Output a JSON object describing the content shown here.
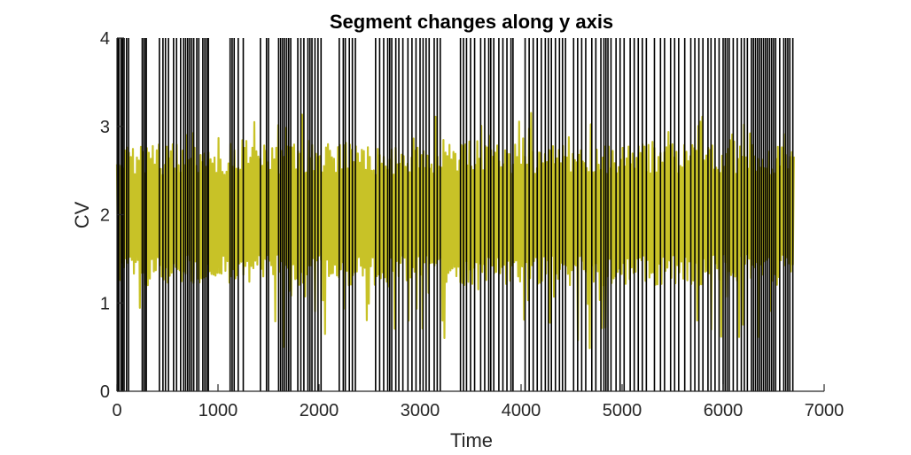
{
  "chart_data": {
    "type": "line",
    "title": "Segment changes along y axis",
    "xlabel": "Time",
    "ylabel": "CV",
    "xlim": [
      0,
      7000
    ],
    "ylim": [
      0,
      4
    ],
    "xticks": [
      "0",
      "1000",
      "2000",
      "3000",
      "4000",
      "5000",
      "6000",
      "7000"
    ],
    "yticks": [
      "0",
      "1",
      "2",
      "3",
      "4"
    ],
    "grid": false,
    "legend": "none",
    "colors": {
      "signal": "#c8c227",
      "signal_highlight": "#f5f000",
      "changepoint": "#000000",
      "axis": "#262626"
    },
    "signal": {
      "x_range": [
        0,
        6700
      ],
      "approx_points": 680,
      "typical_low": 1.2,
      "typical_high": 2.8,
      "min": 0.35,
      "max": 3.2
    },
    "changepoints": [
      8,
      18,
      40,
      55,
      70,
      95,
      115,
      250,
      268,
      285,
      290,
      420,
      455,
      480,
      510,
      560,
      590,
      630,
      660,
      680,
      700,
      720,
      740,
      760,
      790,
      810,
      850,
      870,
      890,
      905,
      1120,
      1140,
      1160,
      1200,
      1250,
      1420,
      1480,
      1500,
      1600,
      1620,
      1640,
      1660,
      1680,
      1700,
      1720,
      1790,
      1820,
      1850,
      1890,
      1910,
      1930,
      1960,
      1990,
      2020,
      2200,
      2240,
      2260,
      2300,
      2330,
      2360,
      2560,
      2600,
      2640,
      2680,
      2700,
      2720,
      2760,
      2790,
      2830,
      2880,
      2920,
      2960,
      3000,
      3030,
      3060,
      3090,
      3140,
      3170,
      3200,
      3400,
      3430,
      3460,
      3500,
      3540,
      3600,
      3640,
      3680,
      3700,
      3730,
      3780,
      3820,
      3860,
      3900,
      3920,
      4040,
      4080,
      4120,
      4160,
      4200,
      4240,
      4270,
      4300,
      4340,
      4380,
      4410,
      4440,
      4520,
      4560,
      4600,
      4640,
      4700,
      4740,
      4790,
      4820,
      4840,
      4860,
      4890,
      4940,
      4980,
      5020,
      5080,
      5120,
      5160,
      5200,
      5240,
      5320,
      5380,
      5420,
      5480,
      5520,
      5560,
      5620,
      5680,
      5720,
      5760,
      5800,
      5850,
      5880,
      5920,
      5960,
      6000,
      6020,
      6040,
      6060,
      6100,
      6140,
      6180,
      6210,
      6240,
      6280,
      6300,
      6320,
      6340,
      6360,
      6380,
      6400,
      6420,
      6440,
      6460,
      6480,
      6500,
      6520,
      6560,
      6600,
      6620,
      6640,
      6660,
      6690
    ]
  }
}
